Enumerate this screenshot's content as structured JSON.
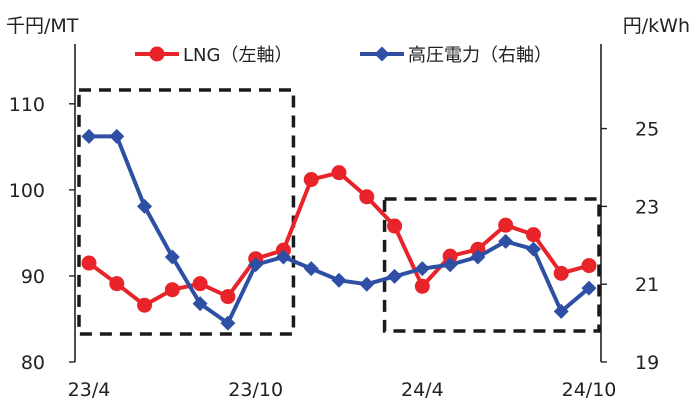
{
  "chart_data": {
    "type": "line",
    "left_unit": "千円/MT",
    "right_unit": "円/kWh",
    "x_tick_labels": [
      "23/4",
      "23/10",
      "24/4",
      "24/10"
    ],
    "left_axis": {
      "ticks": [
        80,
        90,
        100,
        110
      ],
      "ylim": [
        80,
        113
      ]
    },
    "right_axis": {
      "ticks": [
        19,
        21,
        23,
        25
      ],
      "ylim": [
        19,
        26.3
      ]
    },
    "x_categories": [
      "23/4",
      "23/5",
      "23/6",
      "23/7",
      "23/8",
      "23/9",
      "23/10",
      "23/11",
      "23/12",
      "24/1",
      "24/2",
      "24/3",
      "24/4",
      "24/5",
      "24/6",
      "24/7",
      "24/8",
      "24/9",
      "24/10"
    ],
    "series": [
      {
        "name": "LNG（左軸）",
        "axis": "left",
        "color": "#e8232a",
        "marker": "circle",
        "start_index": 0,
        "values": [
          91.5,
          89.1,
          86.6,
          88.4,
          89.1,
          87.6,
          92.0,
          93.0,
          101.2,
          102.0,
          99.2,
          95.8,
          88.8,
          92.3,
          93.1,
          95.9,
          94.8,
          90.3,
          91.2
        ]
      },
      {
        "name": "高圧電力（右軸）",
        "axis": "right",
        "color": "#2e4fa3",
        "marker": "diamond",
        "start_index": 0,
        "values": [
          24.8,
          24.8,
          23.0,
          21.7,
          20.5,
          20.0,
          21.5,
          21.7,
          21.4,
          21.1,
          21.0,
          21.2,
          21.4,
          21.5,
          21.7,
          22.1,
          21.9,
          20.3,
          20.9
        ]
      }
    ],
    "highlight_boxes": [
      {
        "x_from": "23/4",
        "x_to": "23/11",
        "style": "dashed"
      },
      {
        "x_from": "24/3",
        "x_to": "24/10",
        "style": "dashed"
      }
    ],
    "legend_position": "top"
  }
}
